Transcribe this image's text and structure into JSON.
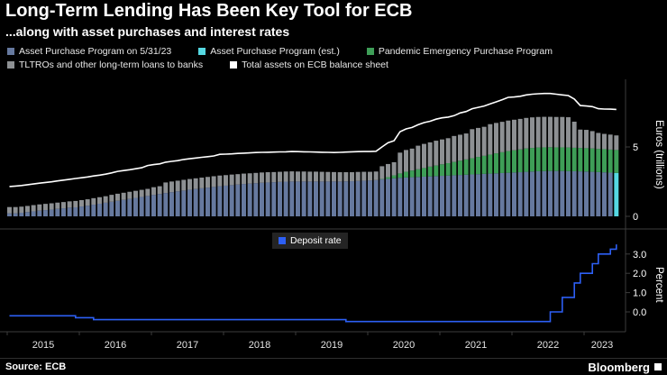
{
  "header": {
    "title": "Long-Term Lending Has Been Key Tool for ECB",
    "subtitle": "...along with asset purchases and interest rates"
  },
  "legend": {
    "items": [
      {
        "label": "Asset Purchase Program on 5/31/23",
        "color": "#66799F"
      },
      {
        "label": "Asset Purchase Program (est.)",
        "color": "#55D8E2"
      },
      {
        "label": "Pandemic Emergency Purchase Program",
        "color": "#3E9E57"
      },
      {
        "label": "TLTROs and other long-term loans to banks",
        "color": "#8D9093"
      },
      {
        "label": "Total assets on ECB balance sheet",
        "color": "#FFFFFF"
      }
    ],
    "deposit": {
      "label": "Deposit rate",
      "color": "#2D5FF5"
    }
  },
  "footer": {
    "source": "Source: ECB",
    "brand": "Bloomberg"
  },
  "x_axis": {
    "years": [
      "2015",
      "2016",
      "2017",
      "2018",
      "2019",
      "2020",
      "2021",
      "2022",
      "2023"
    ]
  },
  "chart_data": [
    {
      "type": "bar",
      "stacked": true,
      "x_start": "2015-01",
      "x_end": "2023-06",
      "frequency": "monthly",
      "ylabel": "Euros (trillions)",
      "ylim": [
        0,
        10
      ],
      "yticks": [
        {
          "value": 5,
          "label": "5"
        },
        {
          "value": 0,
          "label": "0"
        }
      ],
      "est_last_bar_series": "Asset Purchase Program (est.)",
      "est_last_bar_color": "#55D8E2",
      "series": [
        {
          "name": "Asset Purchase Program on 5/31/23",
          "color": "#66799F",
          "values": [
            0.22,
            0.22,
            0.26,
            0.31,
            0.36,
            0.41,
            0.45,
            0.49,
            0.54,
            0.58,
            0.63,
            0.65,
            0.71,
            0.77,
            0.84,
            0.91,
            0.98,
            1.05,
            1.12,
            1.19,
            1.26,
            1.33,
            1.4,
            1.47,
            1.54,
            1.61,
            1.68,
            1.74,
            1.8,
            1.86,
            1.92,
            1.97,
            2.02,
            2.07,
            2.12,
            2.17,
            2.21,
            2.25,
            2.29,
            2.33,
            2.36,
            2.39,
            2.42,
            2.44,
            2.46,
            2.48,
            2.5,
            2.51,
            2.51,
            2.51,
            2.51,
            2.51,
            2.51,
            2.51,
            2.51,
            2.51,
            2.52,
            2.53,
            2.55,
            2.57,
            2.59,
            2.61,
            2.66,
            2.7,
            2.74,
            2.78,
            2.8,
            2.82,
            2.84,
            2.86,
            2.88,
            2.9,
            2.92,
            2.94,
            2.96,
            2.98,
            3.0,
            3.02,
            3.04,
            3.06,
            3.08,
            3.1,
            3.12,
            3.14,
            3.16,
            3.18,
            3.21,
            3.23,
            3.25,
            3.26,
            3.27,
            3.27,
            3.27,
            3.26,
            3.25,
            3.24,
            3.23,
            3.21,
            3.19,
            3.17,
            3.15,
            3.13
          ]
        },
        {
          "name": "Pandemic Emergency Purchase Program",
          "color": "#3E9E57",
          "values": [
            0,
            0,
            0,
            0,
            0,
            0,
            0,
            0,
            0,
            0,
            0,
            0,
            0,
            0,
            0,
            0,
            0,
            0,
            0,
            0,
            0,
            0,
            0,
            0,
            0,
            0,
            0,
            0,
            0,
            0,
            0,
            0,
            0,
            0,
            0,
            0,
            0,
            0,
            0,
            0,
            0,
            0,
            0,
            0,
            0,
            0,
            0,
            0,
            0,
            0,
            0,
            0,
            0,
            0,
            0,
            0,
            0,
            0,
            0,
            0,
            0,
            0,
            0.03,
            0.12,
            0.21,
            0.31,
            0.41,
            0.48,
            0.55,
            0.62,
            0.7,
            0.76,
            0.83,
            0.89,
            0.96,
            1.03,
            1.1,
            1.17,
            1.24,
            1.3,
            1.37,
            1.44,
            1.5,
            1.56,
            1.6,
            1.64,
            1.68,
            1.7,
            1.71,
            1.71,
            1.71,
            1.7,
            1.7,
            1.7,
            1.69,
            1.69,
            1.68,
            1.68,
            1.67,
            1.67,
            1.66,
            1.65
          ]
        },
        {
          "name": "TLTROs and other long-term loans to banks",
          "color": "#8D9093",
          "values": [
            0.45,
            0.45,
            0.44,
            0.44,
            0.45,
            0.45,
            0.45,
            0.45,
            0.45,
            0.45,
            0.45,
            0.46,
            0.46,
            0.46,
            0.47,
            0.47,
            0.47,
            0.5,
            0.51,
            0.51,
            0.51,
            0.51,
            0.51,
            0.51,
            0.56,
            0.56,
            0.76,
            0.77,
            0.77,
            0.77,
            0.77,
            0.77,
            0.77,
            0.77,
            0.77,
            0.77,
            0.76,
            0.76,
            0.75,
            0.75,
            0.74,
            0.74,
            0.74,
            0.74,
            0.73,
            0.73,
            0.73,
            0.73,
            0.72,
            0.72,
            0.71,
            0.71,
            0.7,
            0.69,
            0.68,
            0.67,
            0.66,
            0.65,
            0.65,
            0.64,
            0.62,
            0.62,
            0.92,
            0.95,
            0.95,
            1.5,
            1.57,
            1.58,
            1.7,
            1.74,
            1.75,
            1.79,
            1.79,
            1.8,
            1.87,
            1.87,
            1.87,
            2.09,
            2.09,
            2.09,
            2.19,
            2.19,
            2.19,
            2.2,
            2.2,
            2.2,
            2.2,
            2.2,
            2.2,
            2.2,
            2.19,
            2.19,
            2.19,
            2.18,
            1.88,
            1.32,
            1.32,
            1.25,
            1.15,
            1.1,
            1.08,
            1.05
          ]
        }
      ],
      "line": {
        "name": "Total assets on ECB balance sheet",
        "color": "#FFFFFF",
        "values": [
          2.15,
          2.18,
          2.22,
          2.28,
          2.33,
          2.39,
          2.44,
          2.49,
          2.55,
          2.61,
          2.67,
          2.73,
          2.78,
          2.84,
          2.91,
          2.97,
          3.04,
          3.13,
          3.24,
          3.3,
          3.36,
          3.43,
          3.5,
          3.66,
          3.73,
          3.78,
          3.9,
          3.96,
          4.01,
          4.1,
          4.15,
          4.2,
          4.25,
          4.3,
          4.35,
          4.47,
          4.48,
          4.5,
          4.53,
          4.55,
          4.57,
          4.6,
          4.61,
          4.62,
          4.63,
          4.64,
          4.65,
          4.67,
          4.66,
          4.65,
          4.64,
          4.63,
          4.62,
          4.61,
          4.6,
          4.61,
          4.63,
          4.65,
          4.66,
          4.67,
          4.67,
          4.69,
          5.0,
          5.3,
          5.45,
          6.1,
          6.3,
          6.4,
          6.6,
          6.75,
          6.85,
          7.0,
          7.1,
          7.15,
          7.25,
          7.45,
          7.55,
          7.75,
          7.85,
          7.95,
          8.1,
          8.25,
          8.4,
          8.57,
          8.6,
          8.65,
          8.75,
          8.8,
          8.83,
          8.85,
          8.85,
          8.8,
          8.75,
          8.7,
          8.45,
          7.98,
          7.95,
          7.9,
          7.75,
          7.73,
          7.72,
          7.7
        ]
      }
    },
    {
      "type": "line",
      "step": true,
      "name": "Deposit rate",
      "color": "#2D5FF5",
      "ylabel": "Percent",
      "ylim": [
        -0.75,
        3.75
      ],
      "yticks": [
        {
          "value": 3,
          "label": "3.0"
        },
        {
          "value": 2,
          "label": "2.0"
        },
        {
          "value": 1,
          "label": "1.0"
        },
        {
          "value": 0,
          "label": "0.0"
        }
      ],
      "values": [
        -0.2,
        -0.2,
        -0.2,
        -0.2,
        -0.2,
        -0.2,
        -0.2,
        -0.2,
        -0.2,
        -0.2,
        -0.2,
        -0.3,
        -0.3,
        -0.3,
        -0.4,
        -0.4,
        -0.4,
        -0.4,
        -0.4,
        -0.4,
        -0.4,
        -0.4,
        -0.4,
        -0.4,
        -0.4,
        -0.4,
        -0.4,
        -0.4,
        -0.4,
        -0.4,
        -0.4,
        -0.4,
        -0.4,
        -0.4,
        -0.4,
        -0.4,
        -0.4,
        -0.4,
        -0.4,
        -0.4,
        -0.4,
        -0.4,
        -0.4,
        -0.4,
        -0.4,
        -0.4,
        -0.4,
        -0.4,
        -0.4,
        -0.4,
        -0.4,
        -0.4,
        -0.4,
        -0.4,
        -0.4,
        -0.4,
        -0.5,
        -0.5,
        -0.5,
        -0.5,
        -0.5,
        -0.5,
        -0.5,
        -0.5,
        -0.5,
        -0.5,
        -0.5,
        -0.5,
        -0.5,
        -0.5,
        -0.5,
        -0.5,
        -0.5,
        -0.5,
        -0.5,
        -0.5,
        -0.5,
        -0.5,
        -0.5,
        -0.5,
        -0.5,
        -0.5,
        -0.5,
        -0.5,
        -0.5,
        -0.5,
        -0.5,
        -0.5,
        -0.5,
        -0.5,
        0.0,
        0.0,
        0.75,
        0.75,
        1.5,
        2.0,
        2.0,
        2.5,
        3.0,
        3.0,
        3.25,
        3.5
      ]
    }
  ]
}
